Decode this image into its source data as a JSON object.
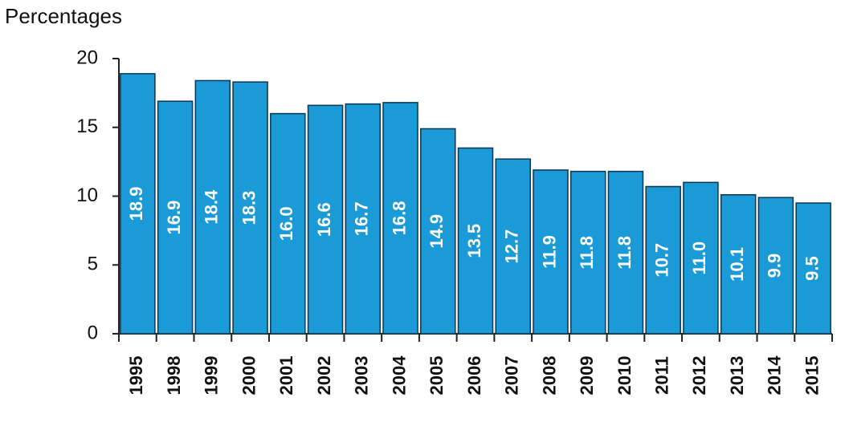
{
  "chart_data": {
    "type": "bar",
    "y_label": "Percentages",
    "categories": [
      "1995",
      "1998",
      "1999",
      "2000",
      "2001",
      "2002",
      "2003",
      "2004",
      "2005",
      "2006",
      "2007",
      "2008",
      "2009",
      "2010",
      "2011",
      "2012",
      "2013",
      "2014",
      "2015"
    ],
    "values": [
      18.9,
      16.9,
      18.4,
      18.3,
      16.0,
      16.6,
      16.7,
      16.8,
      14.9,
      13.5,
      12.7,
      11.9,
      11.8,
      11.8,
      10.7,
      11.0,
      10.1,
      9.9,
      9.5
    ],
    "value_labels": [
      "18.9",
      "16.9",
      "18.4",
      "18.3",
      "16.0",
      "16.6",
      "16.7",
      "16.8",
      "14.9",
      "13.5",
      "12.7",
      "11.9",
      "11.8",
      "11.8",
      "10.7",
      "11.0",
      "10.1",
      "9.9",
      "9.5"
    ],
    "color": "#1b9ad8",
    "ylim": [
      0,
      20
    ],
    "yticks": [
      0,
      5,
      10,
      15,
      20
    ]
  }
}
